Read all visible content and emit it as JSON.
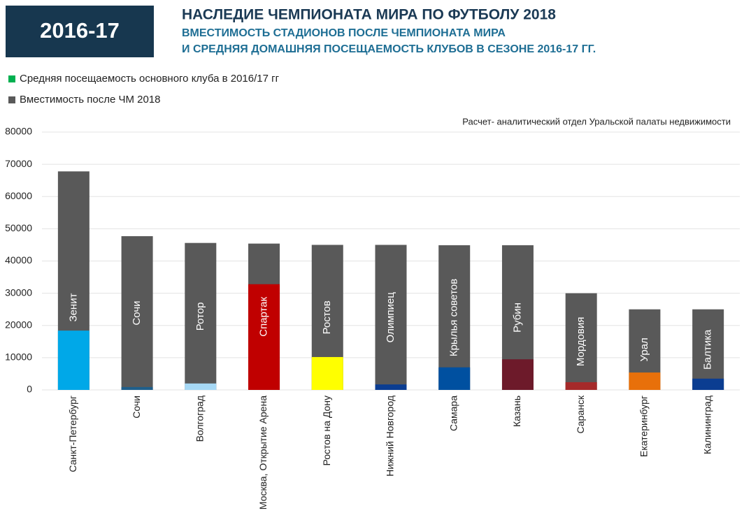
{
  "header": {
    "badge": "2016-17",
    "title": "НАСЛЕДИЕ ЧЕМПИОНАТА МИРА ПО ФУТБОЛУ 2018",
    "subtitle_lines": [
      "ВМЕСТИМОСТЬ СТАДИОНОВ ПОСЛЕ ЧЕМПИОНАТА МИРА",
      "И СРЕДНЯЯ ДОМАШНЯЯ ПОСЕЩАЕМОСТЬ КЛУБОВ В СЕЗОНЕ 2016-17 ГГ."
    ]
  },
  "chart_data": {
    "type": "bar",
    "note": "Расчет- аналитический отдел Уральской палаты недвижимости",
    "categories": [
      "Санкт-Петербург",
      "Сочи",
      "Волгоград",
      "Москва, Открытие Арена",
      "Ростов на Дону",
      "Нижний Новгород",
      "Самара",
      "Казань",
      "Саранск",
      "Екатеринбург",
      "Калининград"
    ],
    "club_labels": [
      "Зенит",
      "Сочи",
      "Ротор",
      "Спартак",
      "Ростов",
      "Олимпиец",
      "Крылья советов",
      "Рубин",
      "Мордовия",
      "Урал",
      "Балтика"
    ],
    "series": [
      {
        "name": "Вместимость после ЧМ 2018",
        "color": "#595959",
        "values": [
          67800,
          47700,
          45600,
          45400,
          45000,
          45000,
          44900,
          44900,
          30000,
          25000,
          25000
        ]
      },
      {
        "name": "Средняя посещаемость основного клуба в 2016/17 гг",
        "color": "#00b050",
        "values": [
          18400,
          900,
          2000,
          32800,
          10200,
          1700,
          7000,
          9500,
          2400,
          5400,
          3500
        ],
        "point_colors": [
          "#00a8e8",
          "#1f5f8b",
          "#a6d8f5",
          "#c00000",
          "#ffff00",
          "#0b3d91",
          "#0050a0",
          "#6d1a2a",
          "#a52a2a",
          "#e8700a",
          "#0b3d91"
        ]
      }
    ],
    "ylim": [
      0,
      80000
    ],
    "yticks": [
      0,
      10000,
      20000,
      30000,
      40000,
      50000,
      60000,
      70000,
      80000
    ],
    "grid": true
  }
}
